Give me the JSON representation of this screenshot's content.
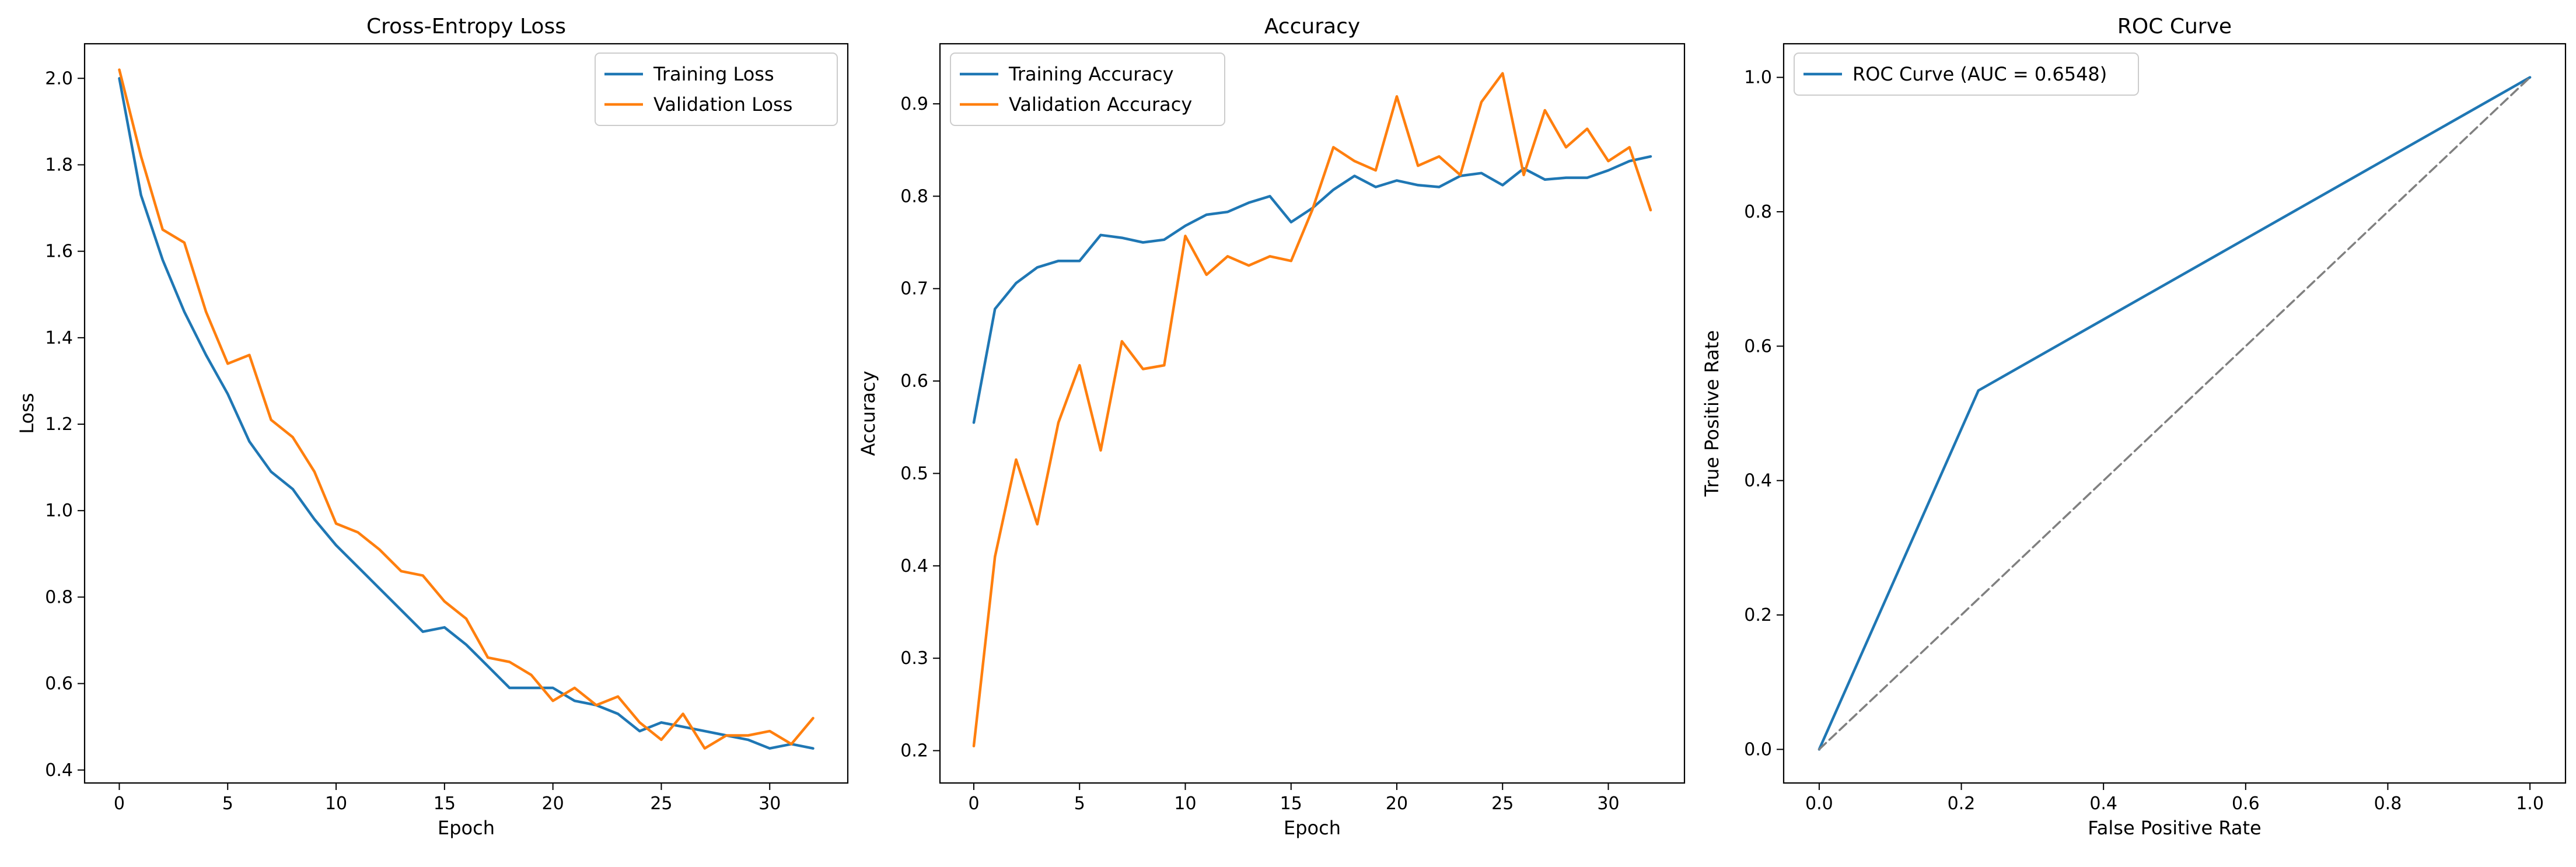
{
  "chart_data": [
    {
      "type": "line",
      "title": "Cross-Entropy Loss",
      "xlabel": "Epoch",
      "ylabel": "Loss",
      "xlim": [
        -1.6,
        33.6
      ],
      "ylim": [
        0.37,
        2.08
      ],
      "xticks": [
        0,
        5,
        10,
        15,
        20,
        25,
        30
      ],
      "yticks": [
        0.4,
        0.6,
        0.8,
        1.0,
        1.2,
        1.4,
        1.6,
        1.8,
        2.0
      ],
      "ytick_labels": [
        "0.4",
        "0.6",
        "0.8",
        "1.0",
        "1.2",
        "1.4",
        "1.6",
        "1.8",
        "2.0"
      ],
      "legend_position": "upper right",
      "grid": false,
      "series": [
        {
          "name": "Training Loss",
          "color": "#1f77b4",
          "x": [
            0,
            1,
            2,
            3,
            4,
            5,
            6,
            7,
            8,
            9,
            10,
            11,
            12,
            13,
            14,
            15,
            16,
            17,
            18,
            19,
            20,
            21,
            22,
            23,
            24,
            25,
            26,
            27,
            28,
            29,
            30,
            31,
            32
          ],
          "y": [
            2.0,
            1.73,
            1.58,
            1.46,
            1.36,
            1.27,
            1.16,
            1.09,
            1.05,
            0.98,
            0.92,
            0.87,
            0.82,
            0.77,
            0.72,
            0.73,
            0.69,
            0.64,
            0.59,
            0.59,
            0.59,
            0.56,
            0.55,
            0.53,
            0.49,
            0.51,
            0.5,
            0.49,
            0.48,
            0.47,
            0.45,
            0.46,
            0.45
          ]
        },
        {
          "name": "Validation Loss",
          "color": "#ff7f0e",
          "x": [
            0,
            1,
            2,
            3,
            4,
            5,
            6,
            7,
            8,
            9,
            10,
            11,
            12,
            13,
            14,
            15,
            16,
            17,
            18,
            19,
            20,
            21,
            22,
            23,
            24,
            25,
            26,
            27,
            28,
            29,
            30,
            31,
            32
          ],
          "y": [
            2.02,
            1.82,
            1.65,
            1.62,
            1.46,
            1.34,
            1.36,
            1.21,
            1.17,
            1.09,
            0.97,
            0.95,
            0.91,
            0.86,
            0.85,
            0.79,
            0.75,
            0.66,
            0.65,
            0.62,
            0.56,
            0.59,
            0.55,
            0.57,
            0.51,
            0.47,
            0.53,
            0.45,
            0.48,
            0.48,
            0.49,
            0.46,
            0.52
          ]
        }
      ]
    },
    {
      "type": "line",
      "title": "Accuracy",
      "xlabel": "Epoch",
      "ylabel": "Accuracy",
      "xlim": [
        -1.6,
        33.6
      ],
      "ylim": [
        0.165,
        0.965
      ],
      "xticks": [
        0,
        5,
        10,
        15,
        20,
        25,
        30
      ],
      "yticks": [
        0.2,
        0.3,
        0.4,
        0.5,
        0.6,
        0.7,
        0.8,
        0.9
      ],
      "ytick_labels": [
        "0.2",
        "0.3",
        "0.4",
        "0.5",
        "0.6",
        "0.7",
        "0.8",
        "0.9"
      ],
      "legend_position": "upper left",
      "grid": false,
      "series": [
        {
          "name": "Training Accuracy",
          "color": "#1f77b4",
          "x": [
            0,
            1,
            2,
            3,
            4,
            5,
            6,
            7,
            8,
            9,
            10,
            11,
            12,
            13,
            14,
            15,
            16,
            17,
            18,
            19,
            20,
            21,
            22,
            23,
            24,
            25,
            26,
            27,
            28,
            29,
            30,
            31,
            32
          ],
          "y": [
            0.555,
            0.678,
            0.706,
            0.723,
            0.73,
            0.73,
            0.758,
            0.755,
            0.75,
            0.753,
            0.768,
            0.78,
            0.783,
            0.793,
            0.8,
            0.772,
            0.787,
            0.807,
            0.822,
            0.81,
            0.817,
            0.812,
            0.81,
            0.822,
            0.825,
            0.812,
            0.83,
            0.818,
            0.82,
            0.82,
            0.828,
            0.838,
            0.843
          ]
        },
        {
          "name": "Validation Accuracy",
          "color": "#ff7f0e",
          "x": [
            0,
            1,
            2,
            3,
            4,
            5,
            6,
            7,
            8,
            9,
            10,
            11,
            12,
            13,
            14,
            15,
            16,
            17,
            18,
            19,
            20,
            21,
            22,
            23,
            24,
            25,
            26,
            27,
            28,
            29,
            30,
            31,
            32
          ],
          "y": [
            0.205,
            0.41,
            0.515,
            0.445,
            0.555,
            0.617,
            0.525,
            0.643,
            0.613,
            0.617,
            0.757,
            0.715,
            0.735,
            0.725,
            0.735,
            0.73,
            0.785,
            0.853,
            0.838,
            0.828,
            0.908,
            0.833,
            0.843,
            0.823,
            0.902,
            0.933,
            0.823,
            0.893,
            0.853,
            0.873,
            0.838,
            0.853,
            0.785
          ]
        }
      ]
    },
    {
      "type": "line",
      "title": "ROC Curve",
      "xlabel": "False Positive Rate",
      "ylabel": "True Positive Rate",
      "xlim": [
        -0.05,
        1.05
      ],
      "ylim": [
        -0.05,
        1.05
      ],
      "xticks": [
        0.0,
        0.2,
        0.4,
        0.6,
        0.8,
        1.0
      ],
      "xtick_labels": [
        "0.0",
        "0.2",
        "0.4",
        "0.6",
        "0.8",
        "1.0"
      ],
      "yticks": [
        0.0,
        0.2,
        0.4,
        0.6,
        0.8,
        1.0
      ],
      "ytick_labels": [
        "0.0",
        "0.2",
        "0.4",
        "0.6",
        "0.8",
        "1.0"
      ],
      "legend_position": "upper left",
      "grid": false,
      "series": [
        {
          "name": "ROC Curve (AUC = 0.6548)",
          "color": "#1f77b4",
          "x": [
            0.0,
            0.224,
            1.0
          ],
          "y": [
            0.0,
            0.534,
            1.0
          ]
        },
        {
          "color": "#808080",
          "dashed": true,
          "in_legend": false,
          "x": [
            0.0,
            1.0
          ],
          "y": [
            0.0,
            1.0
          ]
        }
      ]
    }
  ]
}
